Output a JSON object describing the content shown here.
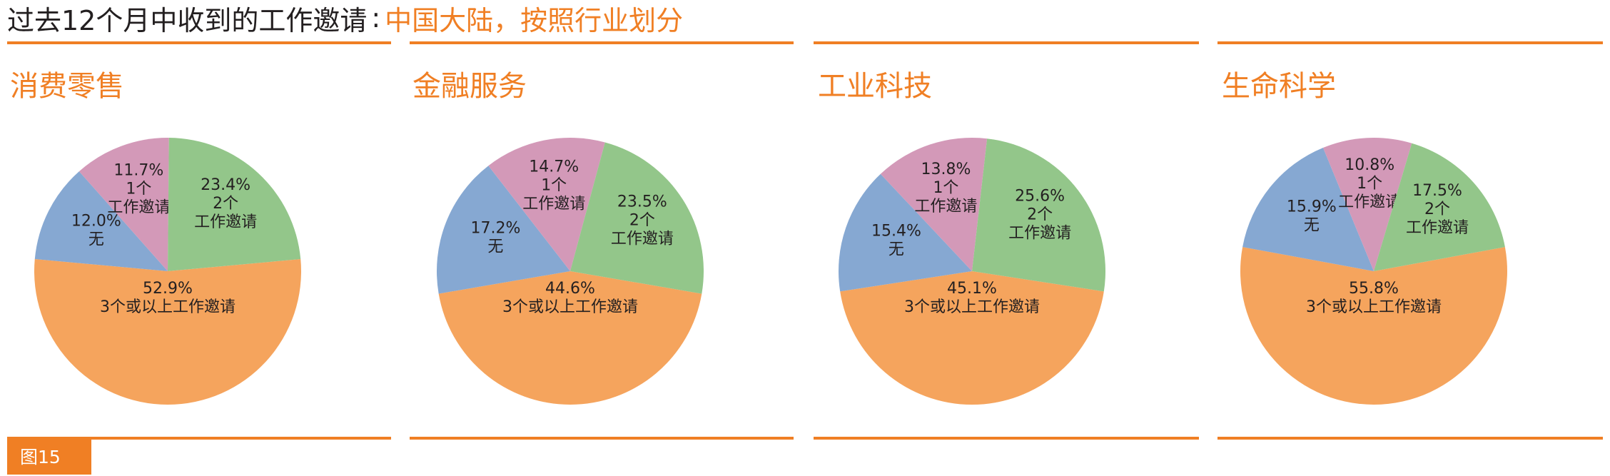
{
  "header": {
    "title_main": "过去12个月中收到的工作邀请",
    "separator": ":",
    "title_sub": "中国大陆，按照行业划分"
  },
  "figure_label": "图15",
  "colors": {
    "accent": "#f07f24",
    "slice_3plus": "#f5a45d",
    "slice_2": "#93c68a",
    "slice_1": "#d399b8",
    "slice_none": "#86a8d2"
  },
  "chart_data": [
    {
      "type": "pie",
      "title": "消费零售",
      "slices": [
        {
          "label": "3个或以上工作邀请",
          "value": 52.9,
          "display": "52.9%"
        },
        {
          "label": "无",
          "value": 12.0,
          "display": "12.0%"
        },
        {
          "label": "1个\n工作邀请",
          "value": 11.7,
          "display": "11.7%"
        },
        {
          "label": "2个\n工作邀请",
          "value": 23.4,
          "display": "23.4%"
        }
      ]
    },
    {
      "type": "pie",
      "title": "金融服务",
      "slices": [
        {
          "label": "3个或以上工作邀请",
          "value": 44.6,
          "display": "44.6%"
        },
        {
          "label": "无",
          "value": 17.2,
          "display": "17.2%"
        },
        {
          "label": "1个\n工作邀请",
          "value": 14.7,
          "display": "14.7%"
        },
        {
          "label": "2个\n工作邀请",
          "value": 23.5,
          "display": "23.5%"
        }
      ]
    },
    {
      "type": "pie",
      "title": "工业科技",
      "slices": [
        {
          "label": "3个或以上工作邀请",
          "value": 45.1,
          "display": "45.1%"
        },
        {
          "label": "无",
          "value": 15.4,
          "display": "15.4%"
        },
        {
          "label": "1个\n工作邀请",
          "value": 13.8,
          "display": "13.8%"
        },
        {
          "label": "2个\n工作邀请",
          "value": 25.6,
          "display": "25.6%"
        }
      ]
    },
    {
      "type": "pie",
      "title": "生命科学",
      "slices": [
        {
          "label": "3个或以上工作邀请",
          "value": 55.8,
          "display": "55.8%"
        },
        {
          "label": "无",
          "value": 15.9,
          "display": "15.9%"
        },
        {
          "label": "1个\n工作邀请",
          "value": 10.8,
          "display": "10.8%"
        },
        {
          "label": "2个\n工作邀请",
          "value": 17.5,
          "display": "17.5%"
        }
      ]
    }
  ]
}
